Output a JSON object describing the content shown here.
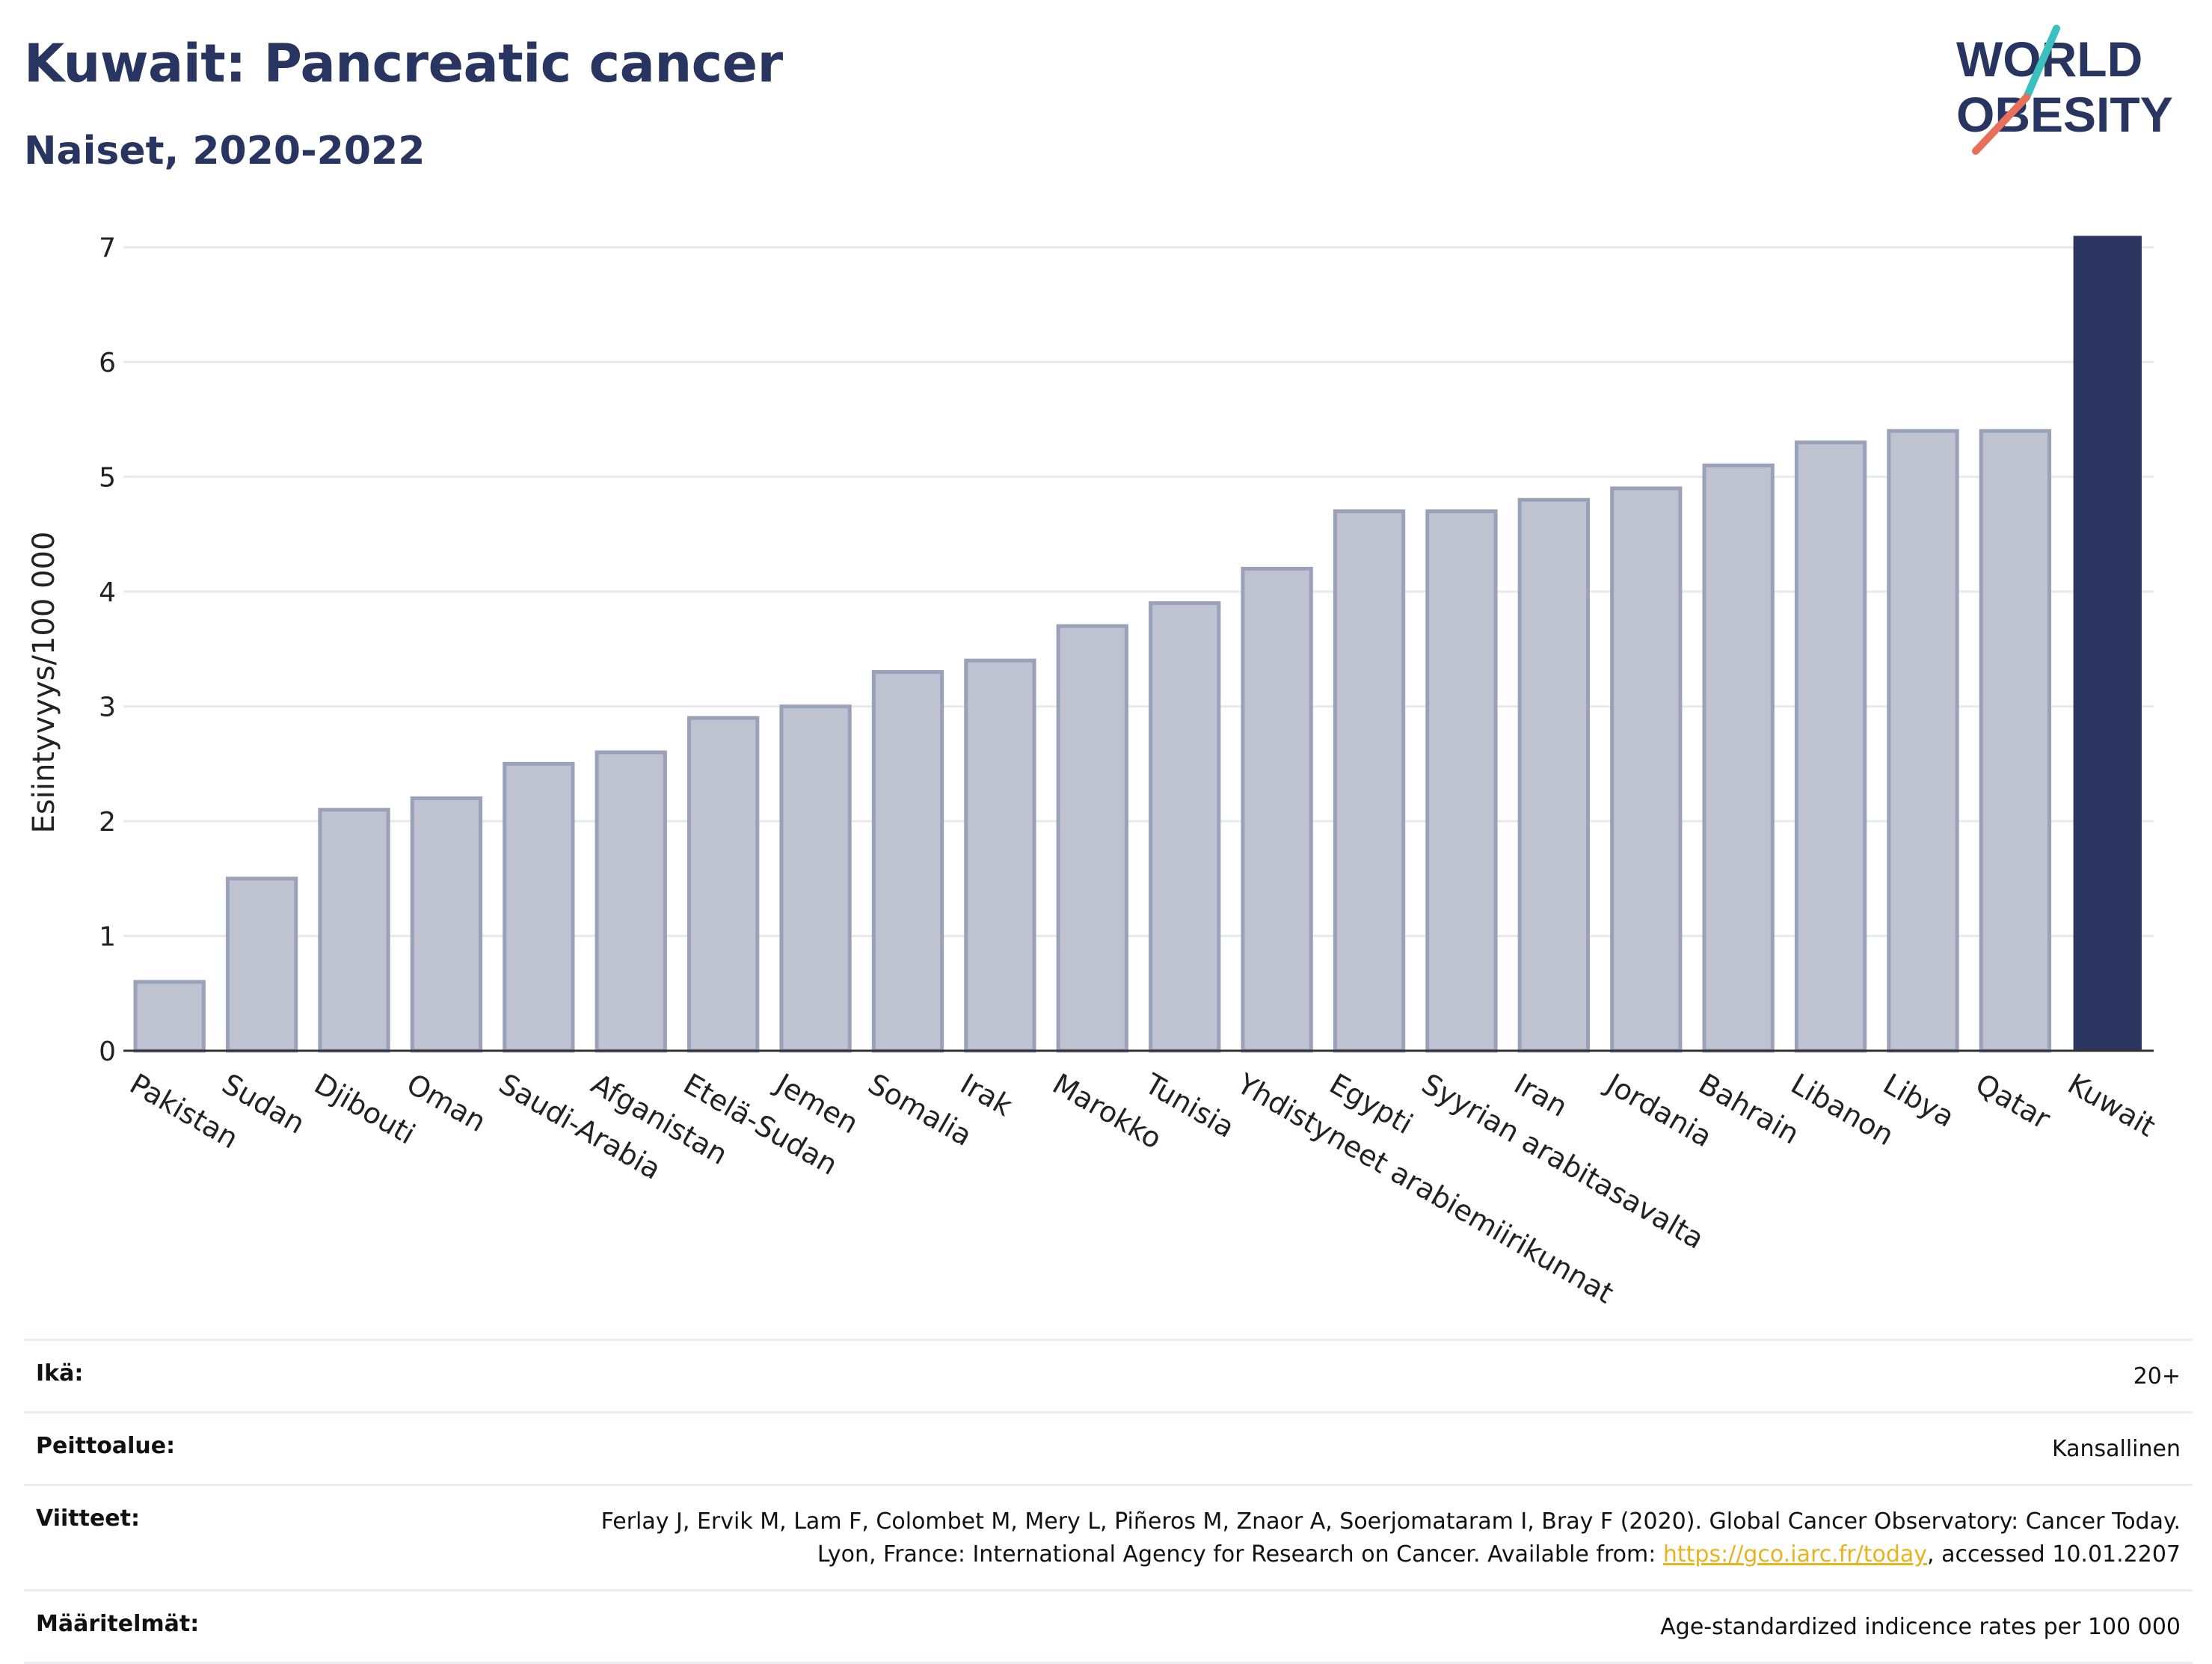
{
  "header": {
    "title": "Kuwait: Pancreatic cancer",
    "subtitle": "Naiset, 2020-2022"
  },
  "logo": {
    "line1": "WORLD",
    "line2": "OBESITY",
    "accent_teal": "#3bbfbf",
    "accent_coral": "#e8705a"
  },
  "colors": {
    "bar": "#bfc2d0",
    "bar_stroke": "#9ba1b8",
    "highlight_bar": "#2b3560",
    "text": "#283561",
    "grid": "#e6e9ee"
  },
  "chart_data": {
    "type": "bar",
    "ylabel": "Esiintyvyys/100 000",
    "ylim": [
      0,
      7.2
    ],
    "yticks": [
      "0",
      "1",
      "2",
      "3",
      "4",
      "5",
      "6",
      "7"
    ],
    "grid": true,
    "highlight": "Kuwait",
    "categories": [
      "Pakistan",
      "Sudan",
      "Djibouti",
      "Oman",
      "Saudi-Arabia",
      "Afganistan",
      "Etelä-Sudan",
      "Jemen",
      "Somalia",
      "Irak",
      "Marokko",
      "Tunisia",
      "Yhdistyneet arabiemiirikunnat",
      "Egypti",
      "Syyrian arabitasavalta",
      "Iran",
      "Jordania",
      "Bahrain",
      "Libanon",
      "Libya",
      "Qatar",
      "Kuwait"
    ],
    "values": [
      0.6,
      1.5,
      2.1,
      2.2,
      2.5,
      2.6,
      2.9,
      3.0,
      3.3,
      3.4,
      3.7,
      3.9,
      4.2,
      4.7,
      4.7,
      4.8,
      4.9,
      5.1,
      5.3,
      5.4,
      5.4,
      7.1
    ]
  },
  "meta": {
    "rows": [
      {
        "label": "Ikä:",
        "value": "20+"
      },
      {
        "label": "Peittoalue:",
        "value": "Kansallinen"
      },
      {
        "label": "Viitteet:",
        "value_pre": "Ferlay J, Ervik M, Lam F, Colombet M, Mery L, Piñeros M, Znaor A, Soerjomataram I, Bray F (2020). Global Cancer Observatory: Cancer Today. Lyon, France: International Agency for Research on Cancer. Available from: ",
        "link": "https://gco.iarc.fr/today",
        "value_post": ", accessed 10.01.2207"
      },
      {
        "label": "Määritelmät:",
        "value": "Age-standardized indicence rates per 100 000"
      }
    ]
  }
}
